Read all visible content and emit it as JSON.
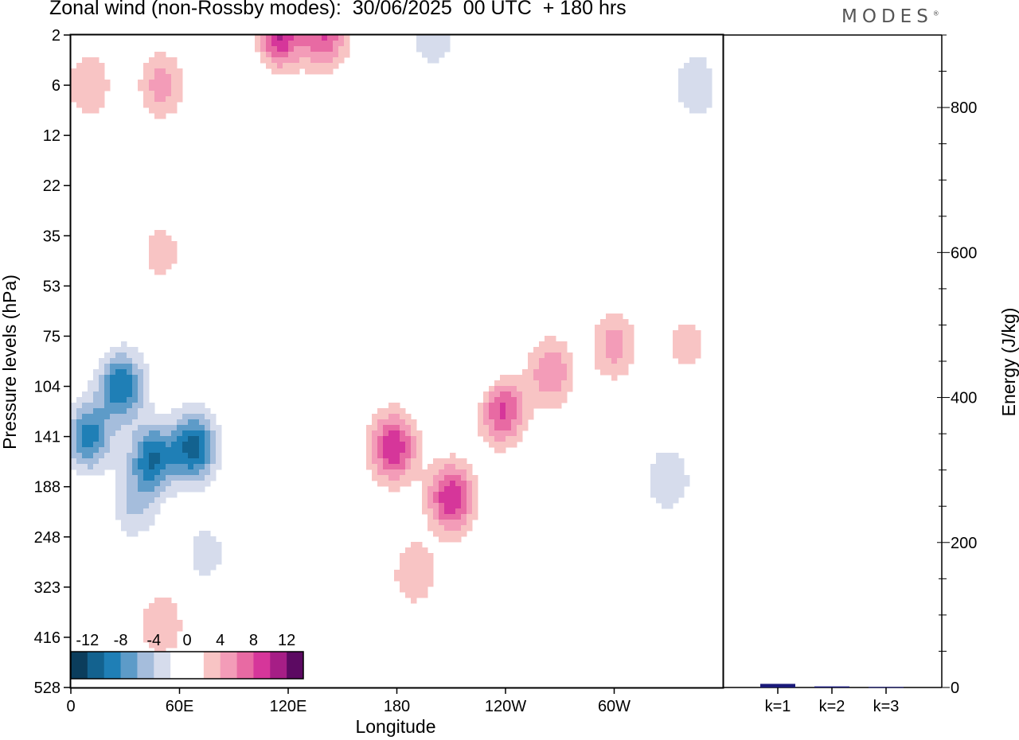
{
  "title": "Zonal wind (non-Rossby modes):  30/06/2025  00 UTC  + 180 hrs",
  "brand": "MODES",
  "chart_data": [
    {
      "type": "heatmap",
      "xlabel": "Longitude",
      "ylabel": "Pressure levels (hPa)",
      "x_ticks": [
        "0",
        "60E",
        "120E",
        "180",
        "120W",
        "60W"
      ],
      "y_ticks": [
        "2",
        "6",
        "12",
        "22",
        "35",
        "53",
        "75",
        "104",
        "141",
        "188",
        "248",
        "323",
        "416",
        "528"
      ],
      "colorbar": {
        "tick_labels": [
          "-12",
          "-8",
          "-4",
          "0",
          "4",
          "8",
          "12"
        ],
        "colors": [
          "#0b3d5c",
          "#13628f",
          "#1f7fb6",
          "#5d9bc8",
          "#a5bddc",
          "#d6dcec",
          "#ffffff",
          "#ffffff",
          "#f8c4c4",
          "#f39cb8",
          "#e86aa3",
          "#d6369a",
          "#a61e86",
          "#5c0a62"
        ]
      },
      "contour_levels": [
        -12,
        -10,
        -8,
        -6,
        -4,
        -2,
        0,
        2,
        4,
        6,
        8,
        10,
        12
      ],
      "blobs": [
        {
          "lon": 10,
          "lev": 141,
          "v": -9
        },
        {
          "lon": 28,
          "lev": 104,
          "v": -10
        },
        {
          "lon": 45,
          "lev": 160,
          "v": -10
        },
        {
          "lon": 68,
          "lev": 150,
          "v": -11
        },
        {
          "lon": 35,
          "lev": 210,
          "v": -4
        },
        {
          "lon": 75,
          "lev": 270,
          "v": -3
        },
        {
          "lon": 120,
          "lev": 430,
          "v": -2
        },
        {
          "lon": 330,
          "lev": 180,
          "v": -4
        },
        {
          "lon": 340,
          "lev": 60,
          "v": -2
        },
        {
          "lon": 230,
          "lev": 100,
          "v": -2
        },
        {
          "lon": 200,
          "lev": 2,
          "v": -4
        },
        {
          "lon": 345,
          "lev": 6,
          "v": -4
        },
        {
          "lon": 100,
          "lev": 6,
          "v": -2
        },
        {
          "lon": 178,
          "lev": 150,
          "v": 10
        },
        {
          "lon": 210,
          "lev": 200,
          "v": 10
        },
        {
          "lon": 238,
          "lev": 120,
          "v": 9
        },
        {
          "lon": 265,
          "lev": 95,
          "v": 6
        },
        {
          "lon": 300,
          "lev": 80,
          "v": 5
        },
        {
          "lon": 340,
          "lev": 75,
          "v": 4
        },
        {
          "lon": 190,
          "lev": 300,
          "v": 4
        },
        {
          "lon": 115,
          "lev": 2,
          "v": 10
        },
        {
          "lon": 140,
          "lev": 2,
          "v": 8
        },
        {
          "lon": 50,
          "lev": 6,
          "v": 5
        },
        {
          "lon": 10,
          "lev": 6,
          "v": 4
        },
        {
          "lon": 50,
          "lev": 40,
          "v": 3
        },
        {
          "lon": 50,
          "lev": 390,
          "v": 4
        },
        {
          "lon": 230,
          "lev": 12,
          "v": 2
        }
      ]
    },
    {
      "type": "bar",
      "categories": [
        "k=1",
        "k=2",
        "k=3"
      ],
      "values": [
        5,
        1.5,
        0.7
      ],
      "ylabel": "Energy (J/kg)",
      "ylim": [
        0,
        900
      ],
      "y_ticks": [
        0,
        200,
        400,
        600,
        800
      ],
      "bar_color": "#1a1a7a"
    }
  ]
}
